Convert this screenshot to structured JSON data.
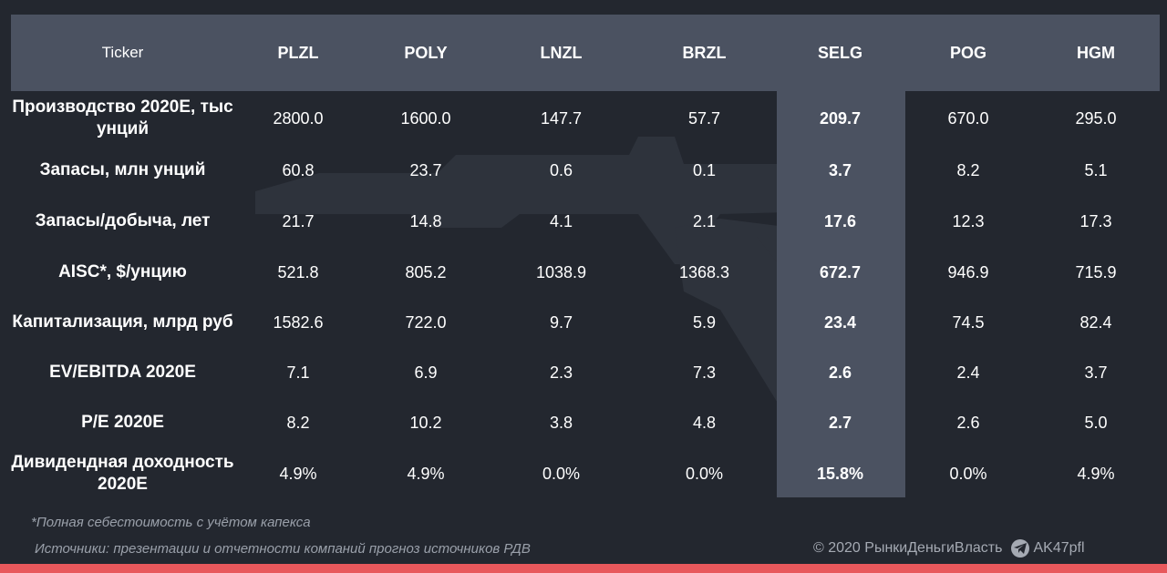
{
  "table": {
    "header": [
      "Ticker",
      "PLZL",
      "POLY",
      "LNZL",
      "BRZL",
      "SELG",
      "POG",
      "HGM"
    ],
    "highlight_column": "SELG",
    "rows": [
      {
        "label": "Производство 2020E, тыс унций",
        "values": [
          "2800.0",
          "1600.0",
          "147.7",
          "57.7",
          "209.7",
          "670.0",
          "295.0"
        ]
      },
      {
        "label": "Запасы, млн унций",
        "values": [
          "60.8",
          "23.7",
          "0.6",
          "0.1",
          "3.7",
          "8.2",
          "5.1"
        ]
      },
      {
        "label": "Запасы/добыча, лет",
        "values": [
          "21.7",
          "14.8",
          "4.1",
          "2.1",
          "17.6",
          "12.3",
          "17.3"
        ]
      },
      {
        "label": "AISC*, $/унцию",
        "values": [
          "521.8",
          "805.2",
          "1038.9",
          "1368.3",
          "672.7",
          "946.9",
          "715.9"
        ]
      },
      {
        "label": "Капитализация, млрд руб",
        "values": [
          "1582.6",
          "722.0",
          "9.7",
          "5.9",
          "23.4",
          "74.5",
          "82.4"
        ]
      },
      {
        "label": "EV/EBITDA 2020E",
        "values": [
          "7.1",
          "6.9",
          "2.3",
          "7.3",
          "2.6",
          "2.4",
          "3.7"
        ]
      },
      {
        "label": "P/E 2020E",
        "values": [
          "8.2",
          "10.2",
          "3.8",
          "4.8",
          "2.7",
          "2.6",
          "5.0"
        ]
      },
      {
        "label": "Дивидендная доходность 2020E",
        "values": [
          "4.9%",
          "4.9%",
          "0.0%",
          "0.0%",
          "15.8%",
          "0.0%",
          "4.9%"
        ]
      }
    ]
  },
  "footnote": "*Полная себестоимость с учётом капекса",
  "sources": "Источники: презентации и отчетности компаний прогноз источников РДВ",
  "copyright": "© 2020  РынкиДеньгиВласть",
  "handle": "AK47pfl",
  "colors": {
    "background": "#23272f",
    "header_band": "#4b5261",
    "highlight": "#4b5261",
    "accent_bar": "#e8585c",
    "muted_text": "#9aa0aa"
  },
  "icons": {
    "telegram": "telegram-icon",
    "watermark": "rifle-watermark-icon"
  }
}
